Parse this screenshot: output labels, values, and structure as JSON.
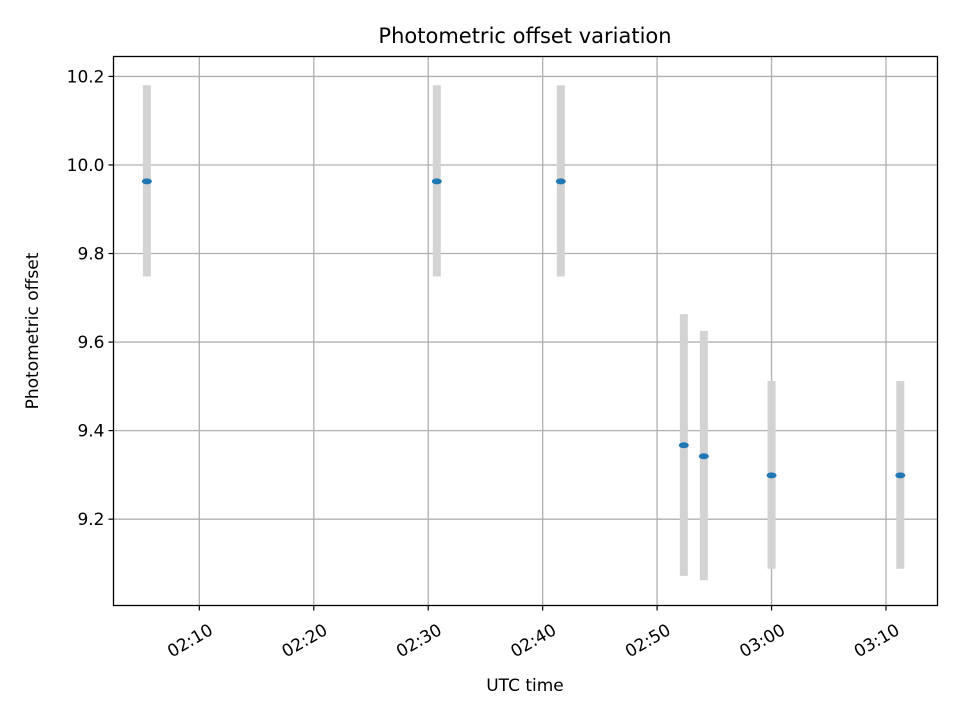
{
  "chart_data": {
    "type": "scatter",
    "title": "Photometric offset variation",
    "xlabel": "UTC time",
    "ylabel": "Photometric offset",
    "xlim": [
      "02:02:30",
      "03:14:30"
    ],
    "ylim": [
      9.005,
      10.245
    ],
    "x_ticks": [
      "02:10",
      "02:20",
      "02:30",
      "02:40",
      "02:50",
      "03:00",
      "03:10"
    ],
    "y_ticks": [
      "9.2",
      "9.4",
      "9.6",
      "9.8",
      "10.0",
      "10.2"
    ],
    "grid": true,
    "points": [
      {
        "x": "02:05:25",
        "y": 9.963,
        "y_low": 9.748,
        "y_high": 10.18
      },
      {
        "x": "02:30:45",
        "y": 9.963,
        "y_low": 9.748,
        "y_high": 10.18
      },
      {
        "x": "02:41:35",
        "y": 9.963,
        "y_low": 9.748,
        "y_high": 10.18
      },
      {
        "x": "02:52:20",
        "y": 9.367,
        "y_low": 9.072,
        "y_high": 9.663
      },
      {
        "x": "02:54:05",
        "y": 9.342,
        "y_low": 9.062,
        "y_high": 9.625
      },
      {
        "x": "03:00:00",
        "y": 9.299,
        "y_low": 9.088,
        "y_high": 9.512
      },
      {
        "x": "03:11:15",
        "y": 9.299,
        "y_low": 9.088,
        "y_high": 9.512
      }
    ],
    "colors": {
      "point": "#1f77b4",
      "error_bar": "#d3d3d3",
      "grid": "#b0b0b0",
      "axes": "#000000"
    }
  }
}
